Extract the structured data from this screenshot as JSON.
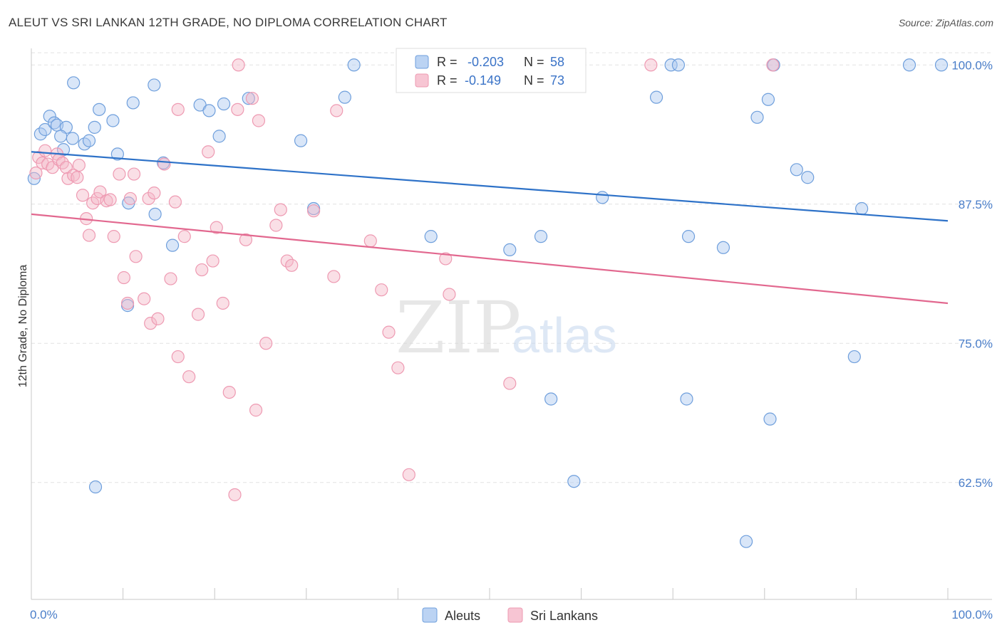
{
  "title": "ALEUT VS SRI LANKAN 12TH GRADE, NO DIPLOMA CORRELATION CHART",
  "source": "Source: ZipAtlas.com",
  "watermark": {
    "zip": "ZIP",
    "atlas": "atlas"
  },
  "legend_box": {
    "rows": [
      {
        "r_label": "R =",
        "r_value": "-0.203",
        "n_label": "N =",
        "n_value": "58",
        "color": "#aac8f0"
      },
      {
        "r_label": "R =",
        "r_value": "-0.149",
        "n_label": "N =",
        "n_value": "73",
        "color": "#f5b7c8"
      }
    ]
  },
  "chart_data": {
    "type": "scatter",
    "xlabel": "",
    "ylabel": "12th Grade, No Diploma",
    "xlim": [
      0,
      100
    ],
    "ylim": [
      52,
      102
    ],
    "x_tick_labels": [
      {
        "value": 0,
        "label": "0.0%"
      },
      {
        "value": 100,
        "label": "100.0%"
      }
    ],
    "y_tick_labels": [
      {
        "value": 100,
        "label": "100.0%"
      },
      {
        "value": 87.5,
        "label": "87.5%"
      },
      {
        "value": 75,
        "label": "75.0%"
      },
      {
        "value": 62.5,
        "label": "62.5%"
      }
    ],
    "grid": true,
    "legend": {
      "placement": "bottom-center",
      "entries": [
        "Aleuts",
        "Sri Lankans"
      ]
    },
    "series": [
      {
        "name": "Aleuts",
        "color": "#6f9fdc",
        "fill": "#aac8f0",
        "trend": {
          "x": [
            0,
            100
          ],
          "y": [
            92.2,
            86.0
          ],
          "color": "#2e72c8"
        },
        "points": [
          [
            0.3,
            89.8
          ],
          [
            1.0,
            93.8
          ],
          [
            1.5,
            94.2
          ],
          [
            2.0,
            95.4
          ],
          [
            2.5,
            94.8
          ],
          [
            2.8,
            94.6
          ],
          [
            3.5,
            92.4
          ],
          [
            3.8,
            94.4
          ],
          [
            4.5,
            93.4
          ],
          [
            4.6,
            98.4
          ],
          [
            5.8,
            92.9
          ],
          [
            6.3,
            93.2
          ],
          [
            6.9,
            94.4
          ],
          [
            7.4,
            96.0
          ],
          [
            8.9,
            95.0
          ],
          [
            9.4,
            92.0
          ],
          [
            10.6,
            87.6
          ],
          [
            11.1,
            96.6
          ],
          [
            10.5,
            78.4
          ],
          [
            13.4,
            98.2
          ],
          [
            13.5,
            86.6
          ],
          [
            14.4,
            91.2
          ],
          [
            15.4,
            83.8
          ],
          [
            18.4,
            96.4
          ],
          [
            19.4,
            95.9
          ],
          [
            20.5,
            93.6
          ],
          [
            21.0,
            96.5
          ],
          [
            23.7,
            97.0
          ],
          [
            29.4,
            93.2
          ],
          [
            30.8,
            87.1
          ],
          [
            34.2,
            97.1
          ],
          [
            35.2,
            100.0
          ],
          [
            43.6,
            84.6
          ],
          [
            47.0,
            100.0
          ],
          [
            52.2,
            83.4
          ],
          [
            55.6,
            84.6
          ],
          [
            56.7,
            70.0
          ],
          [
            59.2,
            62.6
          ],
          [
            62.3,
            88.1
          ],
          [
            69.8,
            100.0
          ],
          [
            68.2,
            97.1
          ],
          [
            70.6,
            100.0
          ],
          [
            71.5,
            70.0
          ],
          [
            71.7,
            84.6
          ],
          [
            75.5,
            83.6
          ],
          [
            78.0,
            57.2
          ],
          [
            79.2,
            95.3
          ],
          [
            80.4,
            96.9
          ],
          [
            80.6,
            68.2
          ],
          [
            81.0,
            100.0
          ],
          [
            83.5,
            90.6
          ],
          [
            84.7,
            89.9
          ],
          [
            89.8,
            73.8
          ],
          [
            90.6,
            87.1
          ],
          [
            95.8,
            100.0
          ],
          [
            99.3,
            100.0
          ],
          [
            7.0,
            62.1
          ],
          [
            3.2,
            93.6
          ]
        ]
      },
      {
        "name": "Sri Lankans",
        "color": "#ee9ab2",
        "fill": "#f5b7c8",
        "trend": {
          "x": [
            0,
            100
          ],
          "y": [
            86.6,
            78.6
          ],
          "color": "#e2688f"
        },
        "points": [
          [
            0.5,
            90.3
          ],
          [
            0.8,
            91.7
          ],
          [
            1.2,
            91.2
          ],
          [
            1.5,
            92.3
          ],
          [
            1.8,
            91.1
          ],
          [
            2.3,
            90.8
          ],
          [
            2.8,
            92.0
          ],
          [
            3.0,
            91.5
          ],
          [
            3.4,
            91.2
          ],
          [
            3.8,
            90.8
          ],
          [
            4.0,
            89.8
          ],
          [
            4.6,
            90.1
          ],
          [
            5.0,
            89.9
          ],
          [
            5.2,
            91.0
          ],
          [
            5.6,
            88.3
          ],
          [
            6.0,
            86.2
          ],
          [
            6.3,
            84.7
          ],
          [
            6.7,
            87.6
          ],
          [
            7.2,
            88.0
          ],
          [
            7.5,
            88.6
          ],
          [
            8.2,
            87.8
          ],
          [
            8.6,
            87.9
          ],
          [
            9.0,
            84.6
          ],
          [
            9.6,
            90.2
          ],
          [
            10.1,
            80.9
          ],
          [
            10.5,
            78.6
          ],
          [
            10.8,
            88.0
          ],
          [
            11.2,
            90.2
          ],
          [
            11.4,
            82.8
          ],
          [
            12.3,
            79.0
          ],
          [
            12.8,
            88.0
          ],
          [
            13.0,
            76.8
          ],
          [
            13.4,
            88.5
          ],
          [
            13.8,
            77.2
          ],
          [
            14.5,
            91.1
          ],
          [
            15.2,
            80.8
          ],
          [
            15.7,
            87.7
          ],
          [
            16.0,
            73.8
          ],
          [
            16.7,
            84.6
          ],
          [
            17.2,
            72.0
          ],
          [
            18.2,
            77.6
          ],
          [
            18.6,
            81.6
          ],
          [
            19.3,
            92.2
          ],
          [
            19.8,
            82.4
          ],
          [
            20.2,
            85.4
          ],
          [
            20.9,
            78.6
          ],
          [
            21.6,
            70.6
          ],
          [
            22.2,
            61.4
          ],
          [
            22.5,
            96.0
          ],
          [
            23.4,
            84.3
          ],
          [
            24.1,
            97.0
          ],
          [
            24.5,
            69.0
          ],
          [
            24.8,
            95.0
          ],
          [
            25.6,
            75.0
          ],
          [
            26.7,
            85.6
          ],
          [
            27.2,
            87.0
          ],
          [
            27.9,
            82.4
          ],
          [
            28.4,
            82.0
          ],
          [
            30.8,
            86.9
          ],
          [
            33.0,
            81.0
          ],
          [
            33.3,
            95.9
          ],
          [
            37.0,
            84.2
          ],
          [
            38.2,
            79.8
          ],
          [
            39.0,
            76.0
          ],
          [
            40.0,
            72.8
          ],
          [
            41.2,
            63.2
          ],
          [
            45.2,
            82.6
          ],
          [
            45.6,
            79.4
          ],
          [
            52.2,
            71.4
          ],
          [
            67.6,
            100.0
          ],
          [
            80.9,
            100.0
          ],
          [
            16.0,
            96.0
          ],
          [
            22.6,
            100.0
          ]
        ]
      }
    ]
  }
}
